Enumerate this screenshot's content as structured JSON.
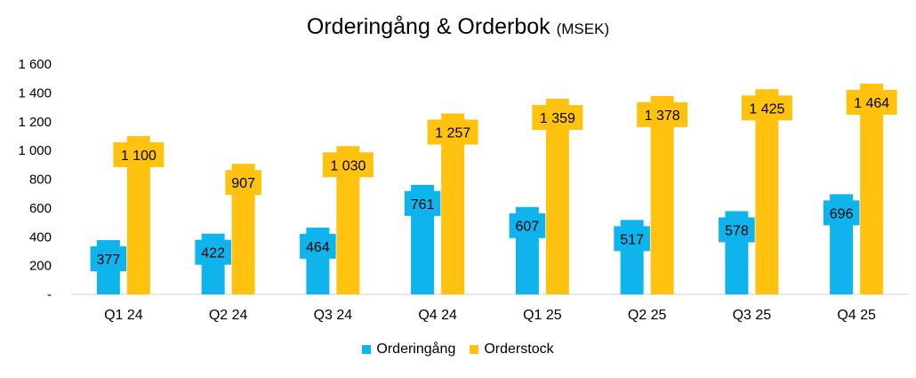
{
  "chart_data": {
    "type": "bar",
    "title": "Orderingång & Orderbok",
    "title_unit": "(MSEK)",
    "categories": [
      "Q1 24",
      "Q2 24",
      "Q3 24",
      "Q4 24",
      "Q1 25",
      "Q2 25",
      "Q3 25",
      "Q4 25"
    ],
    "series": [
      {
        "name": "Orderingång",
        "color": "#10B4EC",
        "values": [
          377,
          422,
          464,
          761,
          607,
          517,
          578,
          696
        ],
        "labels": [
          "377",
          "422",
          "464",
          "761",
          "607",
          "517",
          "578",
          "696"
        ]
      },
      {
        "name": "Orderstock",
        "color": "#FFC20F",
        "values": [
          1100,
          907,
          1030,
          1257,
          1359,
          1378,
          1425,
          1464
        ],
        "labels": [
          "1 100",
          "907",
          "1 030",
          "1 257",
          "1 359",
          "1 378",
          "1 425",
          "1 464"
        ]
      }
    ],
    "yticks": [
      0,
      200,
      400,
      600,
      800,
      1000,
      1200,
      1400,
      1600
    ],
    "ytick_labels": [
      "-",
      "200",
      "400",
      "600",
      "800",
      "1 000",
      "1 200",
      "1 400",
      "1 600"
    ],
    "ylim": [
      0,
      1600
    ],
    "grid": false,
    "legend_position": "bottom"
  }
}
